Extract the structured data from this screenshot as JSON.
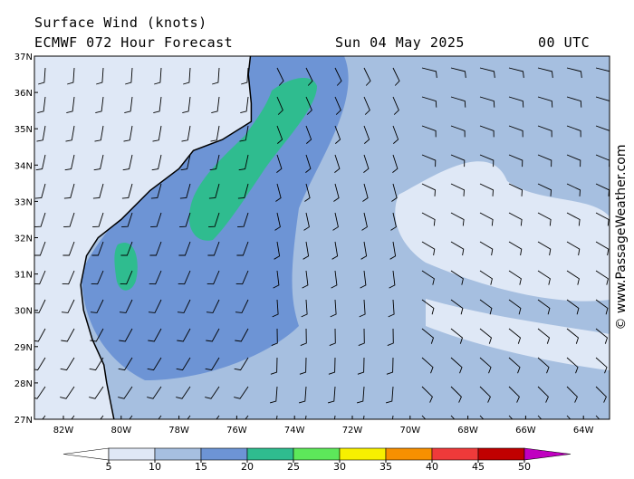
{
  "title": "Surface Wind (knots)",
  "subtitle": {
    "model": "ECMWF 072 Hour Forecast",
    "date": "Sun 04 May 2025",
    "time": "00 UTC"
  },
  "map": {
    "lat_labels": [
      "27N",
      "28N",
      "29N",
      "30N",
      "31N",
      "32N",
      "33N",
      "34N",
      "35N",
      "36N",
      "37N"
    ],
    "lon_labels": [
      "82W",
      "80W",
      "78W",
      "76W",
      "74W",
      "72W",
      "70W",
      "68W",
      "66W",
      "64W"
    ]
  },
  "colorbar": {
    "ticks": [
      5,
      10,
      15,
      20,
      25,
      30,
      35,
      40,
      45,
      50
    ],
    "colors": [
      "#ffffff",
      "#dfe8f6",
      "#a6bfe0",
      "#6d94d5",
      "#2fbc8f",
      "#5de85a",
      "#f7f000",
      "#f79000",
      "#ef3a3a",
      "#c00000",
      "#c000c0"
    ]
  },
  "credit": "© www.PassageWeather.com"
}
